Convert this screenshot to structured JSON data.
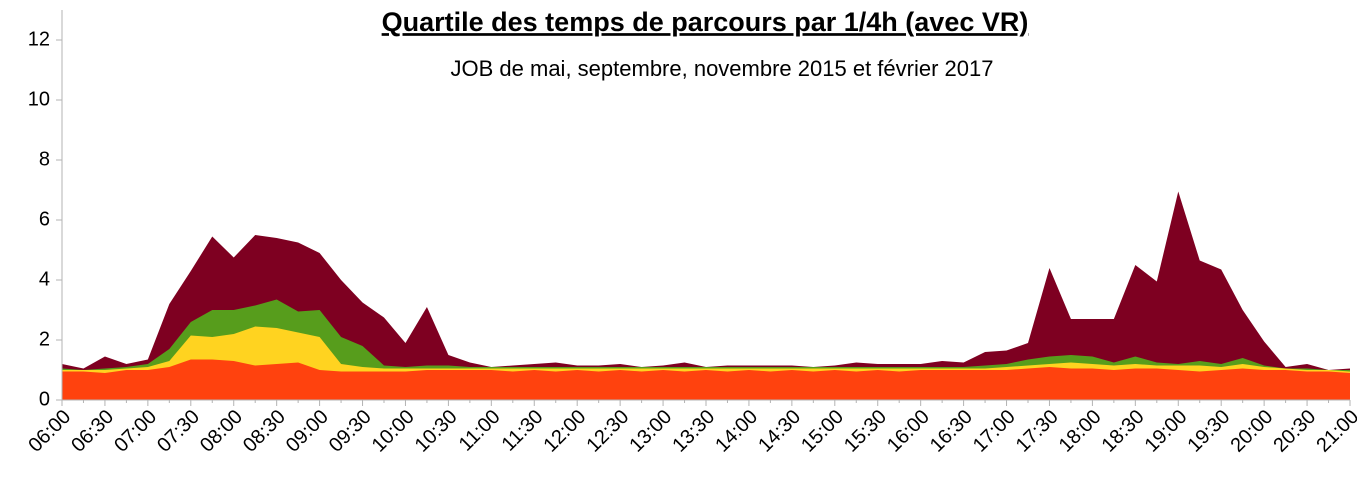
{
  "chart_data": {
    "type": "area",
    "title": "Quartile des temps de parcours par 1/4h (avec VR)",
    "subtitle": "JOB de mai, septembre, novembre 2015 et février 2017",
    "categories": [
      "06:00",
      null,
      "06:30",
      null,
      "07:00",
      null,
      "07:30",
      null,
      "08:00",
      null,
      "08:30",
      null,
      "09:00",
      null,
      "09:30",
      null,
      "10:00",
      null,
      "10:30",
      null,
      "11:00",
      null,
      "11:30",
      null,
      "12:00",
      null,
      "12:30",
      null,
      "13:00",
      null,
      "13:30",
      null,
      "14:00",
      null,
      "14:30",
      null,
      "15:00",
      null,
      "15:30",
      null,
      "16:00",
      null,
      "16:30",
      null,
      "17:00",
      null,
      "17:30",
      null,
      "18:00",
      null,
      "18:30",
      null,
      "19:00",
      null,
      "19:30",
      null,
      "20:00",
      null,
      "20:30",
      null,
      "21:00"
    ],
    "series": [
      {
        "color": "#7e0021",
        "values": [
          1.2,
          1.05,
          1.45,
          1.2,
          1.35,
          3.2,
          4.3,
          5.45,
          4.75,
          5.5,
          5.4,
          5.25,
          4.9,
          4.0,
          3.25,
          2.75,
          1.9,
          3.1,
          1.5,
          1.25,
          1.1,
          1.15,
          1.2,
          1.25,
          1.15,
          1.15,
          1.2,
          1.1,
          1.15,
          1.25,
          1.1,
          1.15,
          1.15,
          1.15,
          1.15,
          1.1,
          1.15,
          1.25,
          1.2,
          1.2,
          1.2,
          1.3,
          1.25,
          1.6,
          1.65,
          1.9,
          4.4,
          2.7,
          2.7,
          2.7,
          4.5,
          3.95,
          6.95,
          4.65,
          4.35,
          3.0,
          1.95,
          1.1,
          1.2,
          1.0,
          1.05
        ]
      },
      {
        "color": "#579d1c",
        "values": [
          1.05,
          1.0,
          1.05,
          1.1,
          1.2,
          1.7,
          2.6,
          3.0,
          3.0,
          3.15,
          3.35,
          2.95,
          3.0,
          2.1,
          1.8,
          1.15,
          1.1,
          1.15,
          1.15,
          1.1,
          1.1,
          1.1,
          1.1,
          1.1,
          1.1,
          1.1,
          1.1,
          1.1,
          1.1,
          1.1,
          1.1,
          1.1,
          1.1,
          1.1,
          1.1,
          1.1,
          1.1,
          1.1,
          1.1,
          1.1,
          1.1,
          1.1,
          1.1,
          1.15,
          1.2,
          1.35,
          1.45,
          1.5,
          1.45,
          1.25,
          1.45,
          1.25,
          1.2,
          1.3,
          1.2,
          1.4,
          1.15,
          1.05,
          1.05,
          1.0,
          1.0
        ]
      },
      {
        "color": "#ffd320",
        "values": [
          1.0,
          1.0,
          1.0,
          1.05,
          1.1,
          1.3,
          2.15,
          2.1,
          2.2,
          2.45,
          2.4,
          2.25,
          2.1,
          1.2,
          1.1,
          1.05,
          1.05,
          1.05,
          1.05,
          1.05,
          1.05,
          1.05,
          1.05,
          1.05,
          1.05,
          1.05,
          1.05,
          1.05,
          1.05,
          1.05,
          1.05,
          1.05,
          1.05,
          1.05,
          1.05,
          1.05,
          1.05,
          1.05,
          1.05,
          1.05,
          1.05,
          1.05,
          1.05,
          1.05,
          1.1,
          1.15,
          1.2,
          1.25,
          1.2,
          1.15,
          1.2,
          1.15,
          1.15,
          1.15,
          1.1,
          1.2,
          1.1,
          1.05,
          1.0,
          1.0,
          0.95
        ]
      },
      {
        "color": "#ff420e",
        "values": [
          0.95,
          0.95,
          0.9,
          1.0,
          1.0,
          1.1,
          1.35,
          1.35,
          1.3,
          1.15,
          1.2,
          1.25,
          1.0,
          0.95,
          0.95,
          0.95,
          0.95,
          1.0,
          1.0,
          1.0,
          1.0,
          0.95,
          1.0,
          0.95,
          1.0,
          0.95,
          1.0,
          0.95,
          1.0,
          0.95,
          1.0,
          0.95,
          1.0,
          0.95,
          1.0,
          0.95,
          1.0,
          0.95,
          1.0,
          0.95,
          1.0,
          1.0,
          1.0,
          1.0,
          1.0,
          1.05,
          1.1,
          1.05,
          1.05,
          1.0,
          1.05,
          1.05,
          1.0,
          0.95,
          1.0,
          1.05,
          1.0,
          1.0,
          0.95,
          0.95,
          0.9
        ]
      }
    ],
    "ylim": [
      0,
      13
    ],
    "yticks": [
      0,
      2,
      4,
      6,
      8,
      10,
      12
    ],
    "grid": false
  }
}
